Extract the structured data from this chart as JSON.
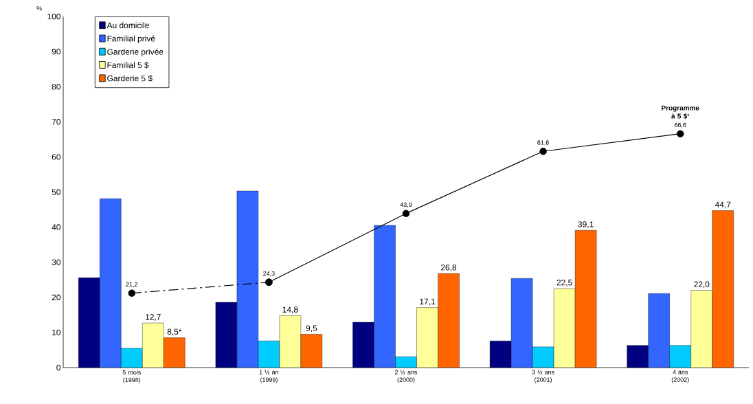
{
  "chart_data": {
    "type": "bar",
    "ylabel": "%",
    "categories": [
      "5 mois (1998)",
      "1 ½ an (1999)",
      "2 ½ ans (2000)",
      "3 ½ ans (2001)",
      "4 ans (2002)"
    ],
    "ylim": [
      0,
      100
    ],
    "yticks": [
      0,
      10,
      20,
      30,
      40,
      50,
      60,
      70,
      80,
      90,
      100
    ],
    "grid": false,
    "legend": "top left",
    "series": [
      {
        "name": "Au domicile",
        "color": "#000080",
        "values": [
          25.6,
          18.6,
          12.9,
          7.6,
          6.3
        ]
      },
      {
        "name": "Familial privé",
        "color": "#3366ff",
        "values": [
          48.1,
          50.3,
          40.5,
          25.4,
          21.1
        ]
      },
      {
        "name": "Garderie privée",
        "color": "#00ccff",
        "values": [
          5.5,
          7.6,
          3.1,
          5.9,
          6.3
        ]
      },
      {
        "name": "Familial 5 $",
        "color": "#ffff99",
        "values": [
          12.7,
          14.8,
          17.1,
          22.5,
          22.0
        ],
        "value_labels": [
          "12,7",
          "14,8",
          "17,1",
          "22,5",
          "22,0"
        ]
      },
      {
        "name": "Garderie 5 $",
        "color": "#ff6600",
        "values": [
          8.5,
          9.5,
          26.8,
          39.1,
          44.7
        ],
        "value_labels": [
          "8,5*",
          "9,5",
          "26,8",
          "39,1",
          "44,7"
        ]
      },
      {
        "type": "line",
        "color": "#000000",
        "line_style": "dashed",
        "marker": "circle",
        "values": [
          21.2,
          24.3,
          null,
          null,
          null
        ],
        "value_labels": [
          "21,2",
          null,
          null,
          null,
          null
        ]
      },
      {
        "type": "line",
        "name": "Programme à 5 $¹",
        "color": "#000000",
        "line_style": "solid",
        "marker": "circle",
        "values": [
          null,
          24.3,
          43.9,
          61.6,
          66.6
        ],
        "value_labels": [
          null,
          "24,3",
          "43,9",
          "61,6",
          "66,6"
        ]
      }
    ]
  }
}
